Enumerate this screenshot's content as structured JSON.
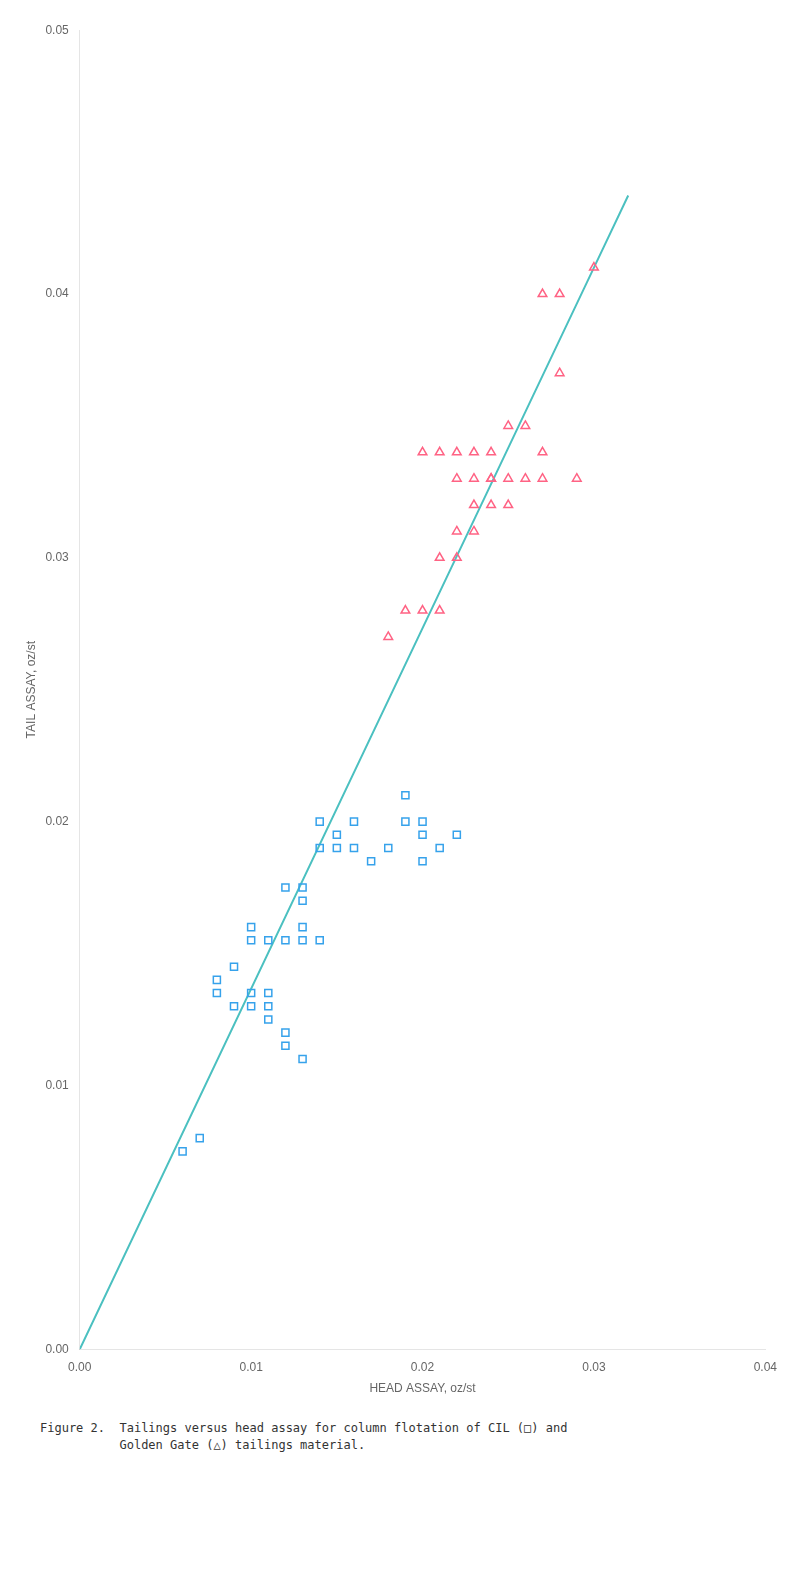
{
  "chart_data": {
    "type": "scatter",
    "caption": "Figure 2.  Tailings versus head assay for column flotation of CIL (□) and\n           Golden Gate (△) tailings material.",
    "x_label": "HEAD ASSAY, oz/st",
    "y_label": "TAIL ASSAY, oz/st",
    "xlim": [
      0.0,
      0.04
    ],
    "ylim": [
      0.0,
      0.05
    ],
    "xticks": [
      {
        "value": 0.0,
        "label": "0.00"
      },
      {
        "value": 0.01,
        "label": "0.01"
      },
      {
        "value": 0.02,
        "label": "0.02"
      },
      {
        "value": 0.03,
        "label": "0.03"
      },
      {
        "value": 0.04,
        "label": "0.04"
      }
    ],
    "yticks": [
      {
        "value": 0.0,
        "label": "0.00"
      },
      {
        "value": 0.01,
        "label": "0.01"
      },
      {
        "value": 0.02,
        "label": "0.02"
      },
      {
        "value": 0.03,
        "label": "0.03"
      },
      {
        "value": 0.04,
        "label": "0.04"
      },
      {
        "value": 0.05,
        "label": "0.05"
      }
    ],
    "grid": false,
    "series": [
      {
        "type": "scatter",
        "marker": "square",
        "x": [
          0.006,
          0.007,
          0.008,
          0.008,
          0.009,
          0.009,
          0.01,
          0.01,
          0.01,
          0.01,
          0.011,
          0.011,
          0.011,
          0.011,
          0.012,
          0.012,
          0.012,
          0.012,
          0.013,
          0.013,
          0.013,
          0.013,
          0.013,
          0.014,
          0.014,
          0.014,
          0.015,
          0.015,
          0.016,
          0.016,
          0.017,
          0.018,
          0.019,
          0.019,
          0.02,
          0.02,
          0.02,
          0.021,
          0.022
        ],
        "values": [
          0.0075,
          0.008,
          0.014,
          0.0135,
          0.0145,
          0.013,
          0.016,
          0.0155,
          0.0135,
          0.013,
          0.0125,
          0.013,
          0.0135,
          0.0155,
          0.0115,
          0.0175,
          0.0155,
          0.012,
          0.0155,
          0.016,
          0.017,
          0.0175,
          0.011,
          0.0155,
          0.019,
          0.02,
          0.019,
          0.0195,
          0.019,
          0.02,
          0.0185,
          0.019,
          0.02,
          0.021,
          0.0195,
          0.02,
          0.0185,
          0.019,
          0.0195
        ]
      },
      {
        "type": "scatter",
        "marker": "triangle",
        "x": [
          0.018,
          0.019,
          0.02,
          0.02,
          0.021,
          0.021,
          0.021,
          0.022,
          0.022,
          0.022,
          0.022,
          0.023,
          0.023,
          0.023,
          0.023,
          0.024,
          0.024,
          0.024,
          0.024,
          0.025,
          0.025,
          0.025,
          0.026,
          0.026,
          0.027,
          0.027,
          0.027,
          0.028,
          0.028,
          0.029,
          0.03
        ],
        "values": [
          0.027,
          0.028,
          0.028,
          0.034,
          0.028,
          0.03,
          0.034,
          0.03,
          0.031,
          0.033,
          0.034,
          0.031,
          0.033,
          0.034,
          0.032,
          0.033,
          0.033,
          0.034,
          0.032,
          0.032,
          0.033,
          0.035,
          0.033,
          0.035,
          0.033,
          0.034,
          0.04,
          0.037,
          0.04,
          0.033,
          0.041
        ]
      },
      {
        "type": "line",
        "marker": "none",
        "line_style": "solid",
        "x": [
          0.0,
          0.03,
          0.032
        ],
        "values": [
          0.0,
          0.041,
          0.04373333333333333
        ]
      }
    ],
    "legend": false
  }
}
